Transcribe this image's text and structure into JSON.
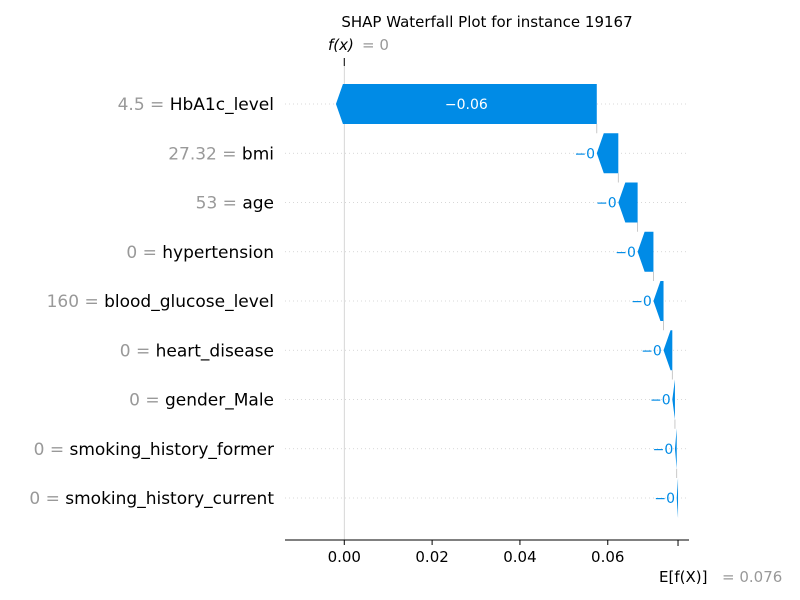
{
  "chart_data": {
    "type": "waterfall",
    "title": "SHAP Waterfall Plot for instance 19167",
    "fx_label": "f(x)",
    "fx_value_text": "= 0",
    "fx_value": 0.0,
    "expected_label": "E[f(X)]",
    "expected_value_text": "= 0.076",
    "expected_value": 0.076,
    "xlim": [
      -0.0135,
      0.0785
    ],
    "xticks": [
      0.0,
      0.02,
      0.04,
      0.06
    ],
    "xtick_labels": [
      "0.00",
      "0.02",
      "0.04",
      "0.06"
    ],
    "features": [
      {
        "value": "4.5",
        "name": "HbA1c_level",
        "shap": -0.0594,
        "label": "−0.06"
      },
      {
        "value": "27.32",
        "name": "bmi",
        "shap": -0.0049,
        "label": "−0"
      },
      {
        "value": "53",
        "name": "age",
        "shap": -0.0044,
        "label": "−0"
      },
      {
        "value": "0",
        "name": "hypertension",
        "shap": -0.0036,
        "label": "−0"
      },
      {
        "value": "160",
        "name": "blood_glucose_level",
        "shap": -0.0023,
        "label": "−0"
      },
      {
        "value": "0",
        "name": "heart_disease",
        "shap": -0.002,
        "label": "−0"
      },
      {
        "value": "0",
        "name": "gender_Male",
        "shap": -0.0006,
        "label": "−0"
      },
      {
        "value": "0",
        "name": "smoking_history_former",
        "shap": -0.0004,
        "label": "−0"
      },
      {
        "value": "0",
        "name": "smoking_history_current",
        "shap": -0.0003,
        "label": "−0"
      }
    ],
    "colors": {
      "negative": "#008BE6",
      "grid": "#cccccc",
      "feature_value": "#999999"
    }
  }
}
